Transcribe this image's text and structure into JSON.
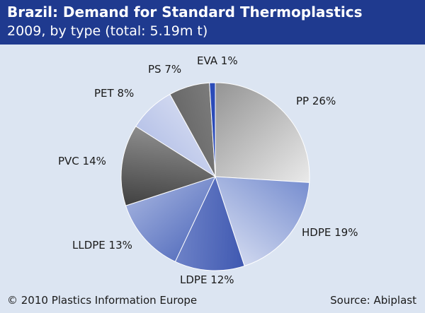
{
  "header": {
    "title": "Brazil: Demand for Standard Thermoplastics",
    "subtitle": "2009, by type (total: 5.19m t)"
  },
  "footer": {
    "copyright": "© 2010 Plastics Information Europe",
    "source": "Source: Abiplast"
  },
  "colors": {
    "header_bg": "#1f3a8f",
    "background": "#dce5f2"
  },
  "chart_data": {
    "type": "pie",
    "title": "Brazil: Demand for Standard Thermoplastics",
    "subtitle": "2009, by type (total: 5.19m t)",
    "unit": "%",
    "slices": [
      {
        "label": "PP 26%",
        "name": "PP",
        "value": 26,
        "light": "#f4f4f4",
        "dark": "#8a8a8a"
      },
      {
        "label": "HDPE 19%",
        "name": "HDPE",
        "value": 19,
        "light": "#e9edf8",
        "dark": "#5d78c6"
      },
      {
        "label": "LDPE 12%",
        "name": "LDPE",
        "value": 12,
        "light": "#8ea0d8",
        "dark": "#1e3aa0"
      },
      {
        "label": "LLDPE 13%",
        "name": "LLDPE",
        "value": 13,
        "light": "#c2cdec",
        "dark": "#3653b0"
      },
      {
        "label": "PVC 14%",
        "name": "PVC",
        "value": 14,
        "light": "#b8b8b8",
        "dark": "#161616"
      },
      {
        "label": "PET 8%",
        "name": "PET",
        "value": 8,
        "light": "#eef1fa",
        "dark": "#9aaade"
      },
      {
        "label": "PS 7%",
        "name": "PS",
        "value": 7,
        "light": "#9a9a9a",
        "dark": "#4a4a4a"
      },
      {
        "label": "EVA 1%",
        "name": "EVA",
        "value": 1,
        "light": "#3a5cc8",
        "dark": "#1c3aa8"
      }
    ]
  }
}
